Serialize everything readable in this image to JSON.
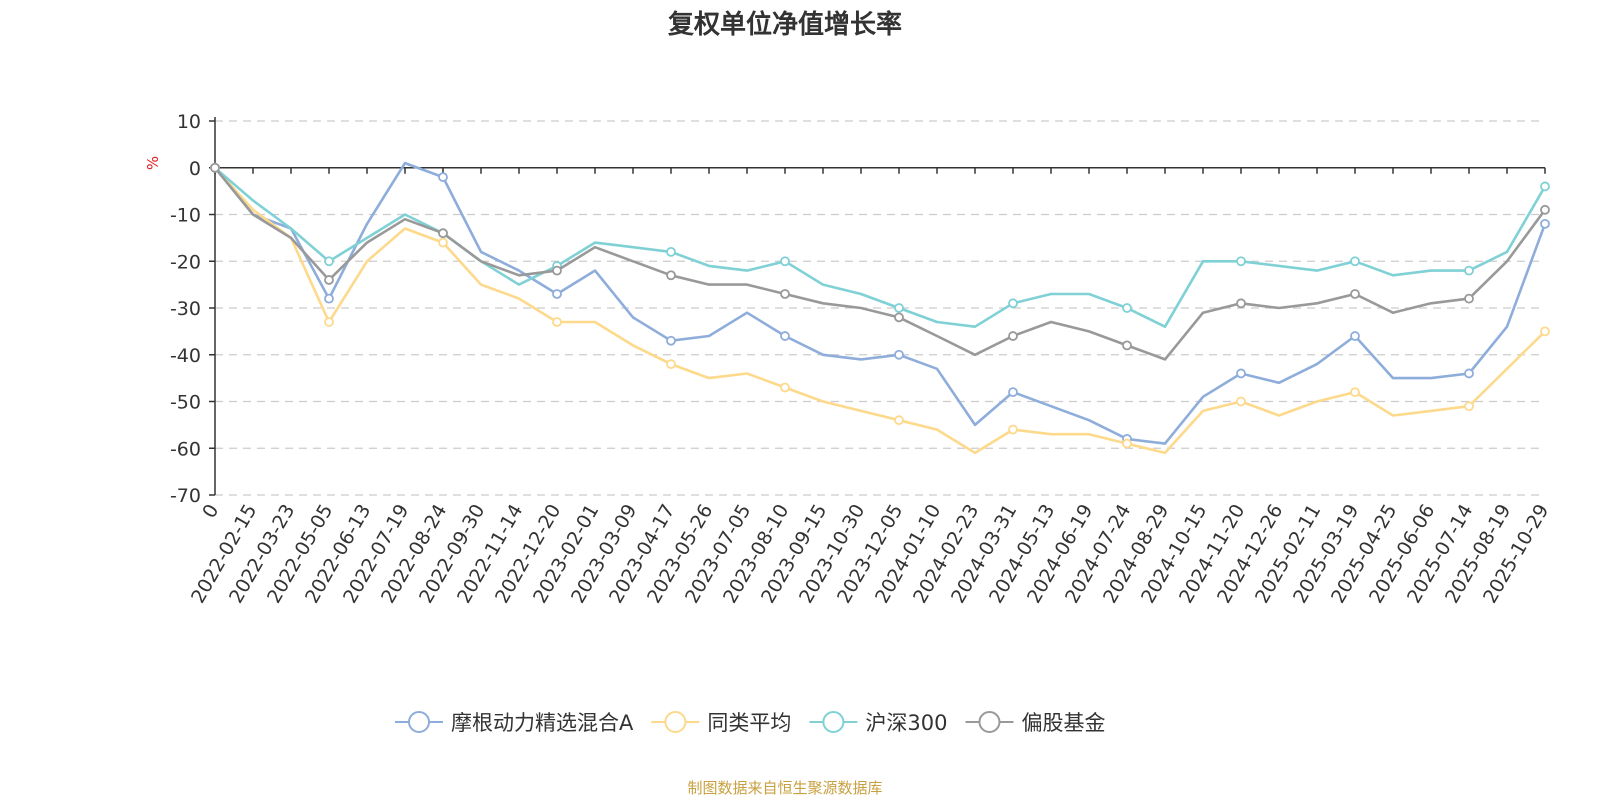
{
  "chart_data": {
    "type": "line",
    "title": "复权单位净值增长率",
    "ylabel": "%",
    "ylim": [
      -70,
      10
    ],
    "yticks": [
      "10",
      "0",
      "-10",
      "-20",
      "-30",
      "-40",
      "-50",
      "-60",
      "-70"
    ],
    "categories": [
      "0",
      "2022-02-15",
      "2022-03-23",
      "2022-05-05",
      "2022-06-13",
      "2022-07-19",
      "2022-08-24",
      "2022-09-30",
      "2022-11-14",
      "2022-12-20",
      "2023-02-01",
      "2023-03-09",
      "2023-04-17",
      "2023-05-26",
      "2023-07-05",
      "2023-08-10",
      "2023-09-15",
      "2023-10-30",
      "2023-12-05",
      "2024-01-10",
      "2024-02-23",
      "2024-03-31",
      "2024-05-13",
      "2024-06-19",
      "2024-07-24",
      "2024-08-29",
      "2024-10-15",
      "2024-11-20",
      "2024-12-26",
      "2025-02-11",
      "2025-03-19",
      "2025-04-25",
      "2025-06-06",
      "2025-07-14",
      "2025-08-19",
      "2025-10-29"
    ],
    "series": [
      {
        "name": "摩根动力精选混合A",
        "color": "#8eaddb",
        "values": [
          0,
          -10,
          -13,
          -28,
          -12,
          1,
          -2,
          -18,
          -22,
          -27,
          -22,
          -32,
          -37,
          -36,
          -31,
          -36,
          -40,
          -41,
          -40,
          -43,
          -55,
          -48,
          -51,
          -54,
          -58,
          -59,
          -49,
          -44,
          -46,
          -42,
          -36,
          -45,
          -45,
          -44,
          -34,
          -12
        ]
      },
      {
        "name": "同类平均",
        "color": "#fdd98c",
        "values": [
          0,
          -9,
          -15,
          -33,
          -20,
          -13,
          -16,
          -25,
          -28,
          -33,
          -33,
          -38,
          -42,
          -45,
          -44,
          -47,
          -50,
          -52,
          -54,
          -56,
          -61,
          -56,
          -57,
          -57,
          -59,
          -61,
          -52,
          -50,
          -53,
          -50,
          -48,
          -53,
          -52,
          -51,
          -43,
          -35
        ]
      },
      {
        "name": "沪深300",
        "color": "#7fd1d6",
        "values": [
          0,
          -7,
          -13,
          -20,
          -15,
          -10,
          -14,
          -20,
          -25,
          -21,
          -16,
          -17,
          -18,
          -21,
          -22,
          -20,
          -25,
          -27,
          -30,
          -33,
          -34,
          -29,
          -27,
          -27,
          -30,
          -34,
          -20,
          -20,
          -21,
          -22,
          -20,
          -23,
          -22,
          -22,
          -18,
          -4
        ]
      },
      {
        "name": "偏股基金",
        "color": "#999999",
        "values": [
          0,
          -10,
          -15,
          -24,
          -16,
          -11,
          -14,
          -20,
          -23,
          -22,
          -17,
          -20,
          -23,
          -25,
          -25,
          -27,
          -29,
          -30,
          -32,
          -36,
          -40,
          -36,
          -33,
          -35,
          -38,
          -41,
          -31,
          -29,
          -30,
          -29,
          -27,
          -31,
          -29,
          -28,
          -20,
          -9
        ]
      }
    ]
  },
  "legend": [
    {
      "label": "摩根动力精选混合A",
      "color": "#8eaddb"
    },
    {
      "label": "同类平均",
      "color": "#fdd98c"
    },
    {
      "label": "沪深300",
      "color": "#7fd1d6"
    },
    {
      "label": "偏股基金",
      "color": "#999999"
    }
  ],
  "source_text": "制图数据来自恒生聚源数据库",
  "colors": {
    "unit": "#e02020",
    "source": "#c8a040",
    "grid": "#cccccc",
    "axis": "#333333"
  }
}
